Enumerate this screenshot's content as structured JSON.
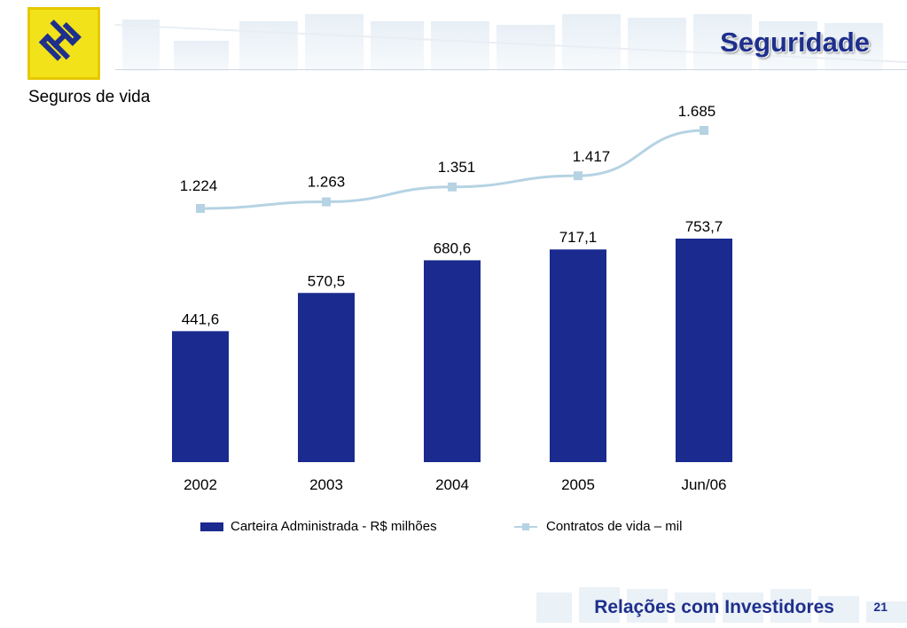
{
  "header": {
    "title": "Seguridade"
  },
  "subtitle": "Seguros de vida",
  "footer": {
    "text": "Relações com Investidores",
    "page": "21"
  },
  "colors": {
    "brand_blue": "#1e2f8c",
    "bar": "#1a2a8f",
    "line": "#b5d3e3",
    "logo_yellow": "#f2e21a"
  },
  "icons": {
    "logo": "banco-do-brasil-logo-icon"
  },
  "chart_data": {
    "type": "bar+line",
    "categories": [
      "2002",
      "2003",
      "2004",
      "2005",
      "Jun/06"
    ],
    "series": [
      {
        "name": "Carteira Administrada - R$ milhões",
        "type": "bar",
        "values": [
          441.6,
          570.5,
          680.6,
          717.1,
          753.7
        ],
        "labels": [
          "441,6",
          "570,5",
          "680,6",
          "717,1",
          "753,7"
        ]
      },
      {
        "name": "Contratos de vida – mil",
        "type": "line",
        "values": [
          1224,
          1263,
          1351,
          1417,
          1685
        ],
        "labels": [
          "1.224",
          "1.263",
          "1.351",
          "1.417",
          "1.685"
        ]
      }
    ],
    "legend": "bottom",
    "grid": false
  }
}
